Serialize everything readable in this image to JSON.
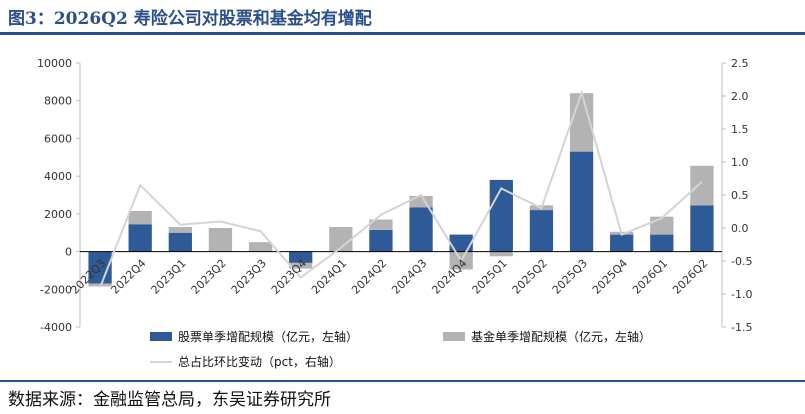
{
  "figure": {
    "title": "图3：2026Q2 寿险公司对股票和基金均有增配",
    "source": "数据来源：金融监管总局，东吴证券研究所"
  },
  "chart_data": {
    "type": "bar",
    "stacked": true,
    "categories": [
      "2022Q3",
      "2022Q4",
      "2023Q1",
      "2023Q2",
      "2023Q3",
      "2023Q4",
      "2024Q1",
      "2024Q2",
      "2024Q3",
      "2024Q4",
      "2025Q1",
      "2025Q2",
      "2025Q3",
      "2025Q4",
      "2026Q1",
      "2026Q2"
    ],
    "series": [
      {
        "name": "股票单季增配规模（亿元，左轴）",
        "type": "bar",
        "axis": "left",
        "color": "#2e5b97",
        "values": [
          -1700,
          1450,
          1000,
          0,
          0,
          -600,
          0,
          1150,
          2350,
          900,
          3800,
          2200,
          5300,
          900,
          900,
          2450
        ]
      },
      {
        "name": "基金单季增配规模（亿元，左轴）",
        "type": "bar",
        "axis": "left",
        "color": "#b3b3b3",
        "values": [
          -150,
          700,
          300,
          1250,
          500,
          -300,
          1300,
          550,
          600,
          -950,
          -250,
          250,
          3100,
          150,
          950,
          2100
        ]
      },
      {
        "name": "总占比环比变动（pct，右轴）",
        "type": "line",
        "axis": "right",
        "color": "#d4d4d4",
        "values": [
          -0.9,
          0.65,
          0.05,
          0.1,
          -0.05,
          -0.75,
          -0.3,
          0.2,
          0.5,
          -0.5,
          0.6,
          0.3,
          2.05,
          -0.1,
          0.15,
          0.7
        ]
      }
    ],
    "left_axis": {
      "ylim": [
        -4000,
        10000
      ],
      "ticks": [
        "-4000",
        "-2000",
        "0",
        "2000",
        "4000",
        "6000",
        "8000",
        "10000"
      ]
    },
    "right_axis": {
      "ylim": [
        -1.5,
        2.5
      ],
      "ticks": [
        "-1.5",
        "-1.0",
        "-0.5",
        "0.0",
        "0.5",
        "1.0",
        "1.5",
        "2.0",
        "2.5"
      ]
    },
    "grid": false,
    "legend_position": "bottom"
  }
}
